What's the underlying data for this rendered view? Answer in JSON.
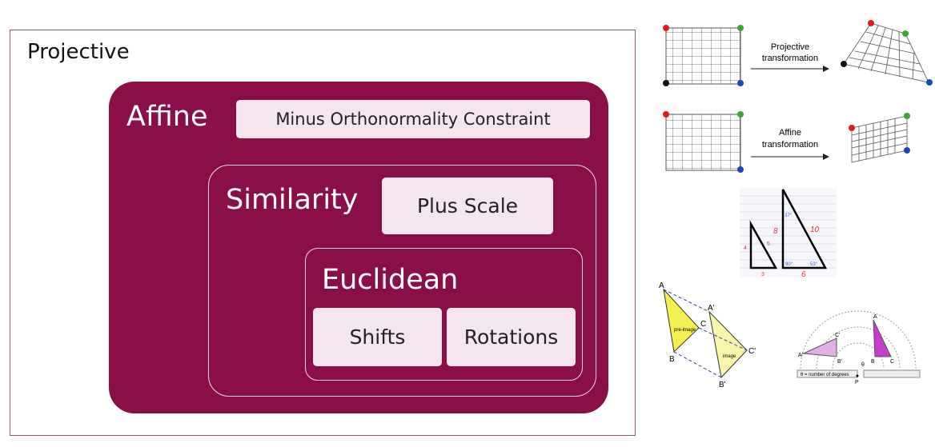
{
  "projective": {
    "title": "Projective"
  },
  "affine": {
    "title": "Affine",
    "note": "Minus Orthonormality Constraint"
  },
  "similarity": {
    "title": "Similarity",
    "note": "Plus Scale"
  },
  "euclidean": {
    "title": "Euclidean",
    "items": [
      "Shifts",
      "Rotations"
    ]
  },
  "figures": {
    "projective_label": [
      "Projective",
      "transformation"
    ],
    "affine_label": [
      "Affine",
      "transformation"
    ],
    "similar_triangles": {
      "small_sides": [
        "4",
        "5",
        "3"
      ],
      "large_sides": [
        "8",
        "10",
        "6"
      ],
      "angles": [
        "37°",
        "53°",
        "90°"
      ]
    },
    "translation": {
      "labels": [
        "A",
        "B",
        "C",
        "A'",
        "B'",
        "C'"
      ],
      "preimage": "pre-image",
      "image": "image"
    },
    "rotation": {
      "labels": [
        "A",
        "B",
        "C",
        "A'",
        "B'",
        "C'",
        "P",
        "θ"
      ],
      "caption": "θ = number of degrees"
    }
  },
  "colors": {
    "maroon": "#8a0e48",
    "pill": "#f4e6ee",
    "corner_red": "#e01b1b",
    "corner_green": "#3aa635",
    "corner_blue": "#1d48b8",
    "corner_black": "#111111"
  }
}
